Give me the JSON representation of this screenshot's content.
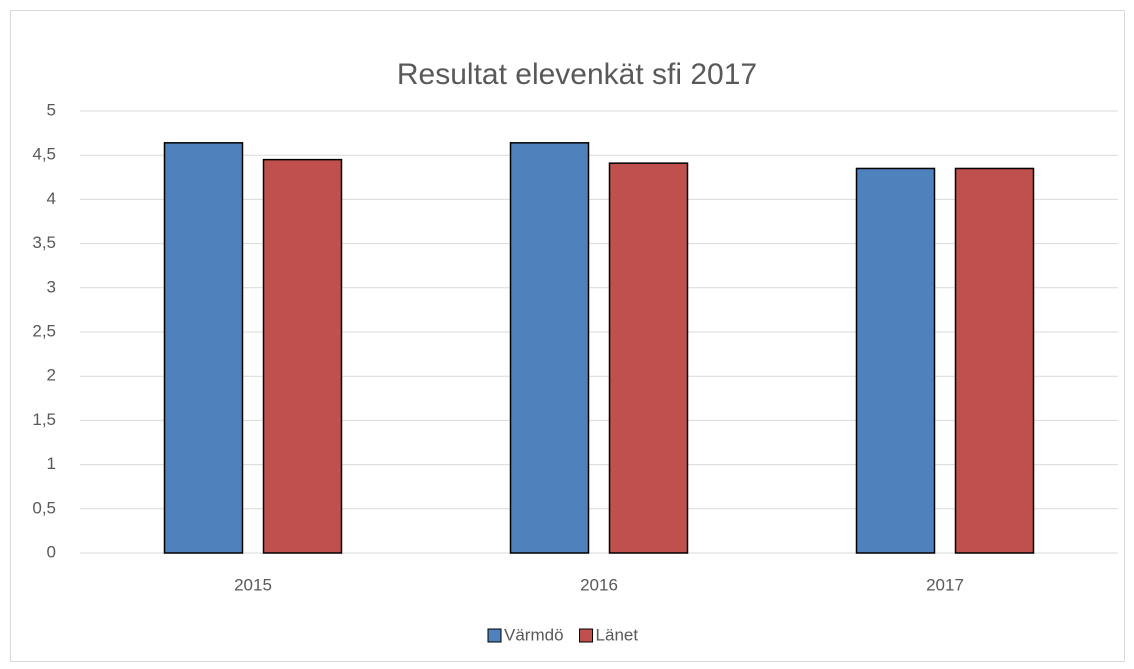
{
  "chart_data": {
    "type": "bar",
    "title": "Resultat elevenkät sfi 2017",
    "categories": [
      "2015",
      "2016",
      "2017"
    ],
    "series": [
      {
        "name": "Värmdö",
        "color": "#4f81bd",
        "values": [
          4.64,
          4.64,
          4.35
        ]
      },
      {
        "name": "Länet",
        "color": "#c0504d",
        "values": [
          4.45,
          4.41,
          4.35
        ]
      }
    ],
    "ylim": [
      0,
      5
    ],
    "yticks": [
      0,
      {
        "value": 0.5,
        "label": "0,5"
      },
      1,
      {
        "value": 1.5,
        "label": "1,5"
      },
      2,
      {
        "value": 2.5,
        "label": "2,5"
      },
      3,
      {
        "value": 3.5,
        "label": "3,5"
      },
      4,
      {
        "value": 4.5,
        "label": "4,5"
      },
      5
    ],
    "grid": true,
    "legend": "bottom"
  }
}
